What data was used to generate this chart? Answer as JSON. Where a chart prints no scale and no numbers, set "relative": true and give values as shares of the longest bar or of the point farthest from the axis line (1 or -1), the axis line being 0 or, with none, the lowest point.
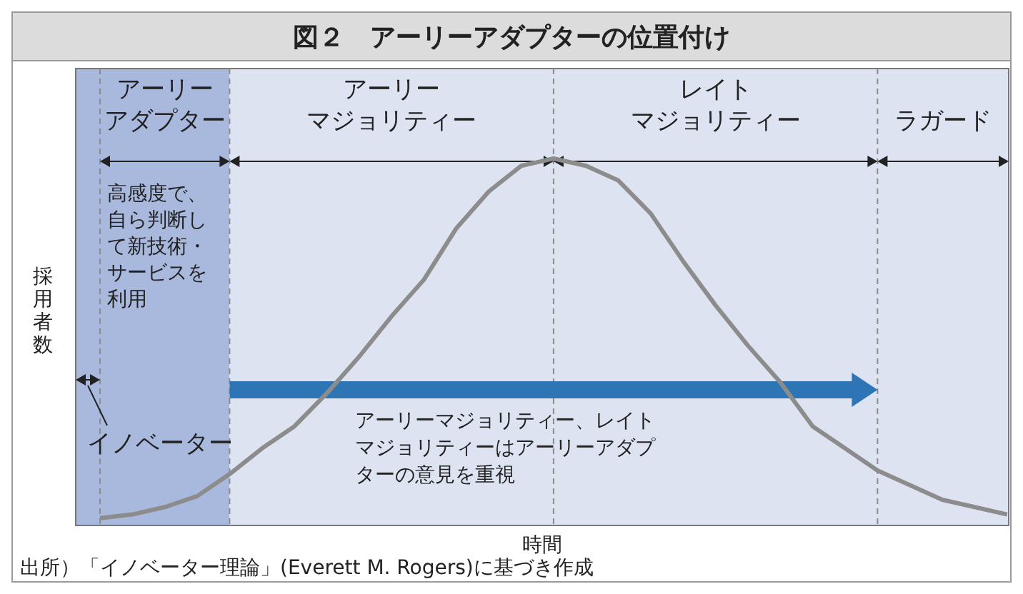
{
  "chart_data": {
    "type": "line",
    "title": "図２　アーリーアダプターの位置付け",
    "xlabel": "時間",
    "ylabel": "採用者数",
    "relative": true,
    "grid": "x",
    "categories": [
      null,
      null,
      null,
      null,
      null,
      null,
      null,
      null,
      null,
      null,
      null,
      null,
      null,
      null,
      null,
      null,
      null,
      null,
      null,
      null,
      null,
      null,
      null,
      null,
      null,
      null,
      null,
      null,
      null
    ],
    "series": [
      {
        "color": "#8c8c8c",
        "values": [
          0.02,
          0.03,
          0.05,
          0.08,
          0.14,
          0.21,
          0.27,
          0.36,
          0.46,
          0.57,
          0.67,
          0.81,
          0.91,
          0.98,
          1,
          0.98,
          0.94,
          0.85,
          0.72,
          0.6,
          0.49,
          0.39,
          0.27,
          0.21,
          0.15,
          0.11,
          0.07,
          0.05,
          0.03
        ]
      }
    ],
    "annotations": [
      "アーリー",
      "アダプター",
      "アーリー",
      "マジョリティー",
      "レイト",
      "マジョリティー",
      "ラガード",
      "イノベーター",
      "高感度で、自ら判断して新技術・サービスを利用",
      "アーリーマジョリティー、レイトマジョリティーはアーリーアダプターの意見を重視",
      "出所）「イノベーター理論」(Everett M. Rogers)に基づき作成"
    ]
  }
}
